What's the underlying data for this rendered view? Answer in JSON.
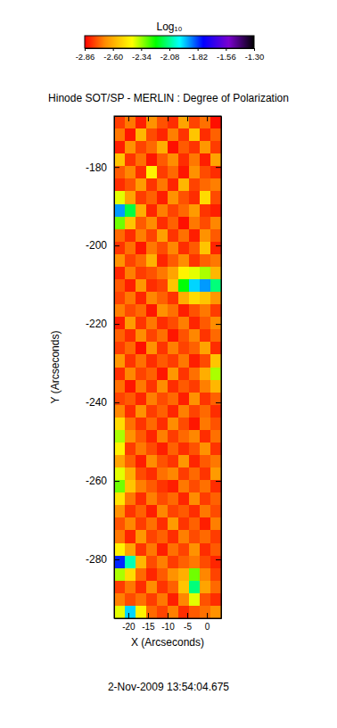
{
  "chart_data": {
    "type": "heatmap",
    "title": "Hinode SOT/SP - MERLIN : Degree of Polarization",
    "x_label": "X (Arcseconds)",
    "y_label": "Y (Arcseconds)",
    "annotations": [
      "2-Nov-2009 13:54:04.675"
    ],
    "colorbar_title": "Log₁₀",
    "xlim": [
      -23.6,
      3.6
    ],
    "ylim": [
      -295,
      -167
    ],
    "xticks": [
      -20,
      -15,
      -10,
      -5,
      0
    ],
    "yticks": [
      -180,
      -200,
      -220,
      -240,
      -260,
      -280
    ],
    "color_range": [
      -2.86,
      -1.3
    ],
    "color_ticks": [
      -2.86,
      {
        "value": -2.6,
        "label": "-2.60"
      },
      -2.34,
      -2.08,
      -1.82,
      -1.56,
      {
        "value": -1.3,
        "label": "-1.30"
      }
    ],
    "x_bins": [
      -23.6,
      -20.88,
      -18.16,
      -15.44,
      -12.72,
      -10,
      -7.28,
      -4.56,
      -1.84,
      0.88,
      3.6
    ],
    "y_bins": [
      -167,
      -170.2,
      -173.4,
      -176.6,
      -179.8,
      -183,
      -186.2,
      -189.4,
      -192.6,
      -195.8,
      -199,
      -202.2,
      -205.4,
      -208.6,
      -211.8,
      -215,
      -218.2,
      -221.4,
      -224.6,
      -227.8,
      -231,
      -234.2,
      -237.4,
      -240.6,
      -243.8,
      -247,
      -250.2,
      -253.4,
      -256.6,
      -259.8,
      -263,
      -266.2,
      -269.4,
      -272.6,
      -275.8,
      -279,
      -282.2,
      -285.4,
      -288.6,
      -291.8,
      -295
    ],
    "z": [
      [
        -2.78,
        -2.7,
        -2.82,
        -2.66,
        -2.75,
        -2.8,
        -2.62,
        -2.77,
        -2.71,
        -2.84
      ],
      [
        -2.7,
        -2.83,
        -2.58,
        -2.76,
        -2.81,
        -2.69,
        -2.79,
        -2.55,
        -2.8,
        -2.73
      ],
      [
        -2.82,
        -2.66,
        -2.77,
        -2.72,
        -2.6,
        -2.84,
        -2.74,
        -2.79,
        -2.65,
        -2.78
      ],
      [
        -2.55,
        -2.79,
        -2.71,
        -2.83,
        -2.74,
        -2.67,
        -2.8,
        -2.7,
        -2.82,
        -2.62
      ],
      [
        -2.74,
        -2.68,
        -2.8,
        -2.45,
        -2.78,
        -2.72,
        -2.83,
        -2.66,
        -2.76,
        -2.8
      ],
      [
        -2.8,
        -2.75,
        -2.64,
        -2.79,
        -2.7,
        -2.81,
        -2.58,
        -2.77,
        -2.72,
        -2.69
      ],
      [
        -2.4,
        -2.62,
        -2.78,
        -2.73,
        -2.82,
        -2.66,
        -2.75,
        -2.8,
        -2.5,
        -2.76
      ],
      [
        -1.9,
        -2.15,
        -2.6,
        -2.81,
        -2.69,
        -2.77,
        -2.72,
        -2.64,
        -2.79,
        -2.82
      ],
      [
        -2.3,
        -2.55,
        -2.74,
        -2.67,
        -2.8,
        -2.73,
        -2.84,
        -2.7,
        -2.76,
        -2.68
      ],
      [
        -2.72,
        -2.8,
        -2.69,
        -2.77,
        -2.63,
        -2.79,
        -2.71,
        -2.82,
        -2.66,
        -2.74
      ],
      [
        -2.79,
        -2.71,
        -2.83,
        -2.7,
        -2.76,
        -2.68,
        -2.8,
        -2.74,
        -2.55,
        -2.81
      ],
      [
        -2.66,
        -2.77,
        -2.72,
        -2.59,
        -2.81,
        -2.74,
        -2.67,
        -2.79,
        -2.73,
        -2.7
      ],
      [
        -2.81,
        -2.69,
        -2.78,
        -2.75,
        -2.7,
        -2.62,
        -2.45,
        -2.4,
        -2.35,
        -2.58
      ],
      [
        -2.74,
        -2.82,
        -2.65,
        -2.8,
        -2.77,
        -2.55,
        -2.2,
        -1.95,
        -1.9,
        -2.1
      ],
      [
        -2.77,
        -2.7,
        -2.81,
        -2.68,
        -2.73,
        -2.79,
        -2.6,
        -2.5,
        -2.55,
        -2.65
      ],
      [
        -2.69,
        -2.76,
        -2.72,
        -2.83,
        -2.66,
        -2.71,
        -2.82,
        -2.75,
        -2.7,
        -2.78
      ],
      [
        -2.82,
        -2.64,
        -2.79,
        -2.7,
        -2.8,
        -2.76,
        -2.69,
        -2.81,
        -2.74,
        -2.67
      ],
      [
        -2.73,
        -2.8,
        -2.67,
        -2.77,
        -2.71,
        -2.83,
        -2.75,
        -2.68,
        -2.79,
        -2.72
      ],
      [
        -2.78,
        -2.72,
        -2.84,
        -2.66,
        -2.79,
        -2.69,
        -2.77,
        -2.73,
        -2.62,
        -2.8
      ],
      [
        -2.65,
        -2.79,
        -2.71,
        -2.8,
        -2.74,
        -2.78,
        -2.7,
        -2.82,
        -2.76,
        -2.55
      ],
      [
        -2.8,
        -2.68,
        -2.77,
        -2.73,
        -2.83,
        -2.65,
        -2.79,
        -2.71,
        -2.6,
        -2.35
      ],
      [
        -2.71,
        -2.83,
        -2.7,
        -2.79,
        -2.67,
        -2.8,
        -2.74,
        -2.78,
        -2.69,
        -2.58
      ],
      [
        -2.77,
        -2.74,
        -2.81,
        -2.69,
        -2.76,
        -2.72,
        -2.82,
        -2.66,
        -2.79,
        -2.73
      ],
      [
        -2.68,
        -2.8,
        -2.66,
        -2.78,
        -2.73,
        -2.81,
        -2.69,
        -2.77,
        -2.72,
        -2.8
      ],
      [
        -2.5,
        -2.71,
        -2.79,
        -2.72,
        -2.8,
        -2.67,
        -2.76,
        -2.83,
        -2.7,
        -2.75
      ],
      [
        -2.35,
        -2.66,
        -2.74,
        -2.81,
        -2.69,
        -2.78,
        -2.72,
        -2.68,
        -2.8,
        -2.71
      ],
      [
        -2.45,
        -2.78,
        -2.7,
        -2.76,
        -2.82,
        -2.73,
        -2.8,
        -2.75,
        -2.66,
        -2.79
      ],
      [
        -2.62,
        -2.73,
        -2.82,
        -2.67,
        -2.75,
        -2.79,
        -2.65,
        -2.81,
        -2.74,
        -2.7
      ],
      [
        -2.4,
        -2.6,
        -2.76,
        -2.8,
        -2.71,
        -2.68,
        -2.78,
        -2.72,
        -2.79,
        -2.64
      ],
      [
        -2.3,
        -2.55,
        -2.69,
        -2.74,
        -2.79,
        -2.82,
        -2.7,
        -2.76,
        -2.71,
        -2.8
      ],
      [
        -2.48,
        -2.7,
        -2.8,
        -2.69,
        -2.76,
        -2.72,
        -2.81,
        -2.67,
        -2.78,
        -2.73
      ],
      [
        -2.66,
        -2.79,
        -2.73,
        -2.82,
        -2.68,
        -2.77,
        -2.74,
        -2.8,
        -2.7,
        -2.76
      ],
      [
        -2.75,
        -2.68,
        -2.78,
        -2.71,
        -2.8,
        -2.64,
        -2.79,
        -2.73,
        -2.82,
        -2.69
      ],
      [
        -2.7,
        -2.81,
        -2.65,
        -2.77,
        -2.73,
        -2.8,
        -2.69,
        -2.76,
        -2.72,
        -2.78
      ],
      [
        -2.45,
        -2.62,
        -2.79,
        -2.7,
        -2.82,
        -2.71,
        -2.77,
        -2.66,
        -2.8,
        -2.74
      ],
      [
        -1.8,
        -2.05,
        -2.58,
        -2.76,
        -2.69,
        -2.78,
        -2.73,
        -2.7,
        -2.76,
        -2.81
      ],
      [
        -2.35,
        -2.5,
        -2.72,
        -2.81,
        -2.74,
        -2.66,
        -2.6,
        -2.3,
        -2.68,
        -2.77
      ],
      [
        -2.78,
        -2.7,
        -2.8,
        -2.67,
        -2.79,
        -2.73,
        -2.55,
        -2.1,
        -2.62,
        -2.72
      ],
      [
        -2.69,
        -2.76,
        -2.71,
        -2.78,
        -2.7,
        -2.82,
        -2.68,
        -2.4,
        -2.75,
        -2.8
      ],
      [
        -2.4,
        -1.95,
        -2.45,
        -2.72,
        -2.77,
        -2.69,
        -2.8,
        -2.74,
        -2.71,
        -2.66
      ]
    ]
  }
}
